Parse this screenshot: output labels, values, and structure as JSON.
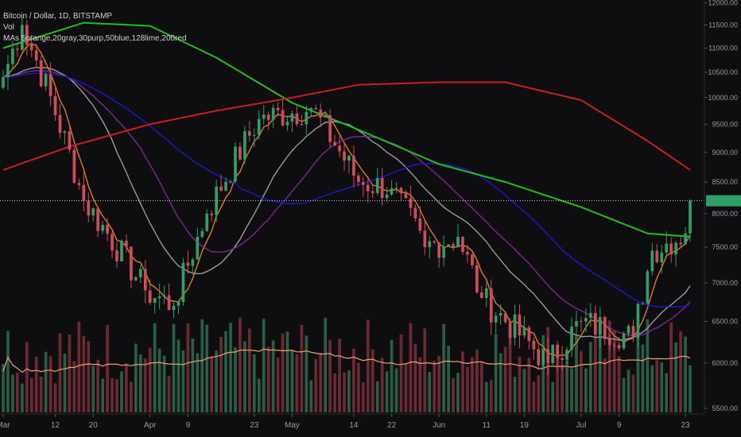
{
  "legend": {
    "title": "Bitcoin / Dollar, 1D, BITSTAMP",
    "volume": "Vol",
    "mas": "MAs 5orange,20gray,30purp,50blue,128lime,200red"
  },
  "colors": {
    "background": "#0e0e10",
    "up": "#2f9e67",
    "down": "#d24b5a",
    "vol_up": "#285e45",
    "vol_down": "#6b2a33",
    "ma5": "#e07a22",
    "ma20": "#9a9a9a",
    "ma30": "#7a2a8a",
    "ma50": "#1a1ad0",
    "ma128": "#1fbf1f",
    "ma200": "#c81e1e",
    "vol_ma": "#f0a070"
  },
  "chart_data": {
    "type": "candlestick",
    "symbol": "Bitcoin / Dollar",
    "interval": "1D",
    "exchange": "BITSTAMP",
    "date_range": [
      "2018-03-01",
      "2018-07-24"
    ],
    "y_scale": "log",
    "ylim": [
      5440,
      12030
    ],
    "yticks": [
      "12000.00",
      "11500.00",
      "11000.00",
      "10500.00",
      "10000.00",
      "9500.00",
      "9000.00",
      "8500.00",
      "8000.00",
      "7500.00",
      "7000.00",
      "6500.00",
      "6000.00",
      "5500.00"
    ],
    "xticks": [
      "Mar",
      "12",
      "20",
      "Apr",
      "9",
      "23",
      "May",
      "14",
      "22",
      "Jun",
      "11",
      "19",
      "Jul",
      "9",
      "23"
    ],
    "last_price": 8200,
    "key_closes": [
      {
        "date": "2018-03-01",
        "close": 10400
      },
      {
        "date": "2018-03-05",
        "close": 11500
      },
      {
        "date": "2018-03-18",
        "close": 8200
      },
      {
        "date": "2018-03-31",
        "close": 6900
      },
      {
        "date": "2018-04-06",
        "close": 6700
      },
      {
        "date": "2018-04-13",
        "close": 8000
      },
      {
        "date": "2018-04-24",
        "close": 9600
      },
      {
        "date": "2018-05-05",
        "close": 9800
      },
      {
        "date": "2018-05-15",
        "close": 8500
      },
      {
        "date": "2018-05-22",
        "close": 8400
      },
      {
        "date": "2018-05-29",
        "close": 7500
      },
      {
        "date": "2018-06-05",
        "close": 7650
      },
      {
        "date": "2018-06-10",
        "close": 6800
      },
      {
        "date": "2018-06-24",
        "close": 6000
      },
      {
        "date": "2018-07-01",
        "close": 6500
      },
      {
        "date": "2018-07-12",
        "close": 6300
      },
      {
        "date": "2018-07-16",
        "close": 7450
      },
      {
        "date": "2018-07-23",
        "close": 7700
      },
      {
        "date": "2018-07-24",
        "close": 8200
      }
    ],
    "moving_averages": [
      {
        "name": "5orange",
        "period": 5
      },
      {
        "name": "20gray",
        "period": 20
      },
      {
        "name": "30purp",
        "period": 30
      },
      {
        "name": "50blue",
        "period": 50
      },
      {
        "name": "128lime",
        "period": 128,
        "points": [
          {
            "date": "2018-03-01",
            "value": 11000
          },
          {
            "date": "2018-03-18",
            "value": 11550
          },
          {
            "date": "2018-04-01",
            "value": 11480
          },
          {
            "date": "2018-04-15",
            "value": 10800
          },
          {
            "date": "2018-05-01",
            "value": 9900
          },
          {
            "date": "2018-05-15",
            "value": 9400
          },
          {
            "date": "2018-06-01",
            "value": 8800
          },
          {
            "date": "2018-06-15",
            "value": 8500
          },
          {
            "date": "2018-07-01",
            "value": 8100
          },
          {
            "date": "2018-07-15",
            "value": 7700
          },
          {
            "date": "2018-07-24",
            "value": 7650
          }
        ]
      },
      {
        "name": "200red",
        "period": 200,
        "points": [
          {
            "date": "2018-03-01",
            "value": 8700
          },
          {
            "date": "2018-03-15",
            "value": 9100
          },
          {
            "date": "2018-04-01",
            "value": 9500
          },
          {
            "date": "2018-04-15",
            "value": 9750
          },
          {
            "date": "2018-05-01",
            "value": 10000
          },
          {
            "date": "2018-05-15",
            "value": 10250
          },
          {
            "date": "2018-06-01",
            "value": 10300
          },
          {
            "date": "2018-06-15",
            "value": 10300
          },
          {
            "date": "2018-07-01",
            "value": 9950
          },
          {
            "date": "2018-07-15",
            "value": 9200
          },
          {
            "date": "2018-07-24",
            "value": 8700
          }
        ]
      }
    ],
    "volume_panel": true
  }
}
